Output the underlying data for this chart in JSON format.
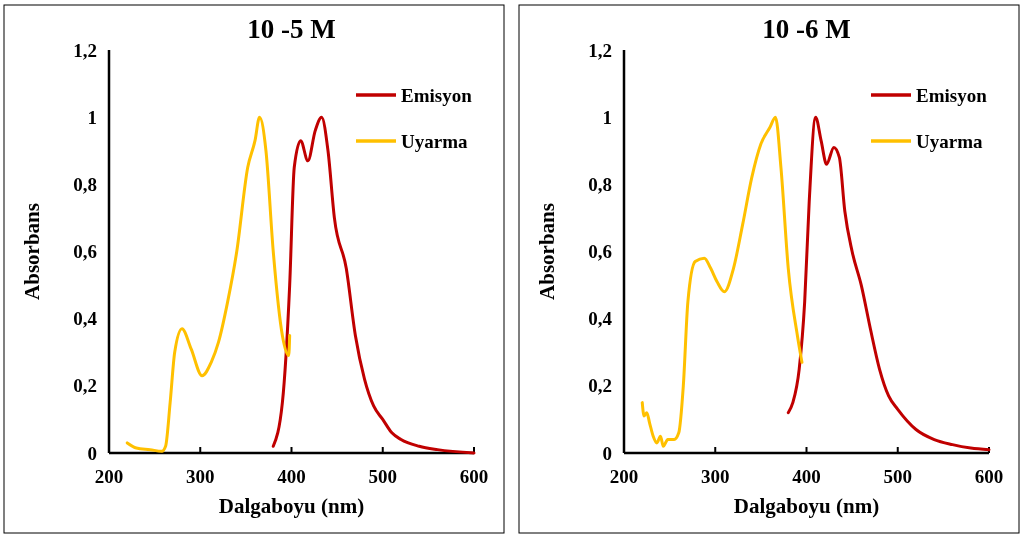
{
  "chart_data": [
    {
      "type": "line",
      "title": "10 -5 M",
      "xlabel": "Dalgaboyu (nm)",
      "ylabel": "Absorbans",
      "xlim": [
        200,
        600
      ],
      "xticks": [
        200,
        300,
        400,
        500,
        600
      ],
      "ylim": [
        0,
        1.2
      ],
      "yticks": [
        {
          "value": 0,
          "label": "0"
        },
        {
          "value": 0.2,
          "label": "0,2"
        },
        {
          "value": 0.4,
          "label": "0,4"
        },
        {
          "value": 0.6,
          "label": "0,6"
        },
        {
          "value": 0.8,
          "label": "0,8"
        },
        {
          "value": 1,
          "label": "1"
        },
        {
          "value": 1.2,
          "label": "1,2"
        }
      ],
      "grid": false,
      "legend": "top right",
      "marker": "none",
      "line_style": "solid",
      "series": [
        {
          "name": "Emisyon",
          "color": "#c00000",
          "x": [
            380,
            390,
            398,
            403,
            410,
            418,
            426,
            433,
            440,
            447,
            460,
            470,
            480,
            490,
            500,
            510,
            520,
            540,
            560,
            600
          ],
          "values": [
            0.02,
            0.15,
            0.5,
            0.85,
            0.93,
            0.87,
            0.96,
            1.0,
            0.9,
            0.7,
            0.55,
            0.35,
            0.22,
            0.14,
            0.1,
            0.06,
            0.04,
            0.02,
            0.01,
            0
          ]
        },
        {
          "name": "Uyarma",
          "color": "#ffc000",
          "x": [
            220,
            230,
            245,
            258,
            262,
            267,
            272,
            280,
            290,
            302,
            312,
            320,
            330,
            340,
            352,
            360,
            365,
            372,
            380,
            390,
            397,
            398
          ],
          "values": [
            0.03,
            0.015,
            0.01,
            0.005,
            0.02,
            0.15,
            0.3,
            0.37,
            0.31,
            0.23,
            0.27,
            0.33,
            0.45,
            0.6,
            0.85,
            0.93,
            1.0,
            0.9,
            0.6,
            0.35,
            0.29,
            0.35
          ]
        }
      ]
    },
    {
      "type": "line",
      "title": "10 -6 M",
      "xlabel": "Dalgaboyu (nm)",
      "ylabel": "Absorbans",
      "xlim": [
        200,
        600
      ],
      "xticks": [
        200,
        300,
        400,
        500,
        600
      ],
      "ylim": [
        0,
        1.2
      ],
      "yticks": [
        {
          "value": 0,
          "label": "0"
        },
        {
          "value": 0.2,
          "label": "0,2"
        },
        {
          "value": 0.4,
          "label": "0,4"
        },
        {
          "value": 0.6,
          "label": "0,6"
        },
        {
          "value": 0.8,
          "label": "0,8"
        },
        {
          "value": 1,
          "label": "1"
        },
        {
          "value": 1.2,
          "label": "1,2"
        }
      ],
      "grid": false,
      "legend": "top right",
      "marker": "none",
      "line_style": "solid",
      "series": [
        {
          "name": "Emisyon",
          "color": "#c00000",
          "x": [
            380,
            385,
            392,
            398,
            403,
            410,
            416,
            422,
            430,
            436,
            442,
            450,
            460,
            470,
            480,
            490,
            500,
            520,
            540,
            560,
            580,
            600
          ],
          "values": [
            0.12,
            0.15,
            0.25,
            0.45,
            0.75,
            1.0,
            0.93,
            0.86,
            0.91,
            0.88,
            0.72,
            0.6,
            0.5,
            0.37,
            0.25,
            0.17,
            0.13,
            0.07,
            0.04,
            0.025,
            0.015,
            0.01
          ]
        },
        {
          "name": "Uyarma",
          "color": "#ffc000",
          "x": [
            220,
            222,
            225,
            228,
            232,
            236,
            240,
            243,
            248,
            255,
            260,
            265,
            270,
            278,
            288,
            295,
            302,
            310,
            320,
            330,
            340,
            350,
            360,
            366,
            372,
            380,
            390,
            395
          ],
          "values": [
            0.15,
            0.11,
            0.12,
            0.09,
            0.05,
            0.03,
            0.05,
            0.02,
            0.04,
            0.04,
            0.06,
            0.2,
            0.45,
            0.57,
            0.58,
            0.55,
            0.51,
            0.48,
            0.55,
            0.68,
            0.82,
            0.92,
            0.97,
            1.0,
            0.85,
            0.55,
            0.35,
            0.27
          ]
        }
      ]
    }
  ]
}
